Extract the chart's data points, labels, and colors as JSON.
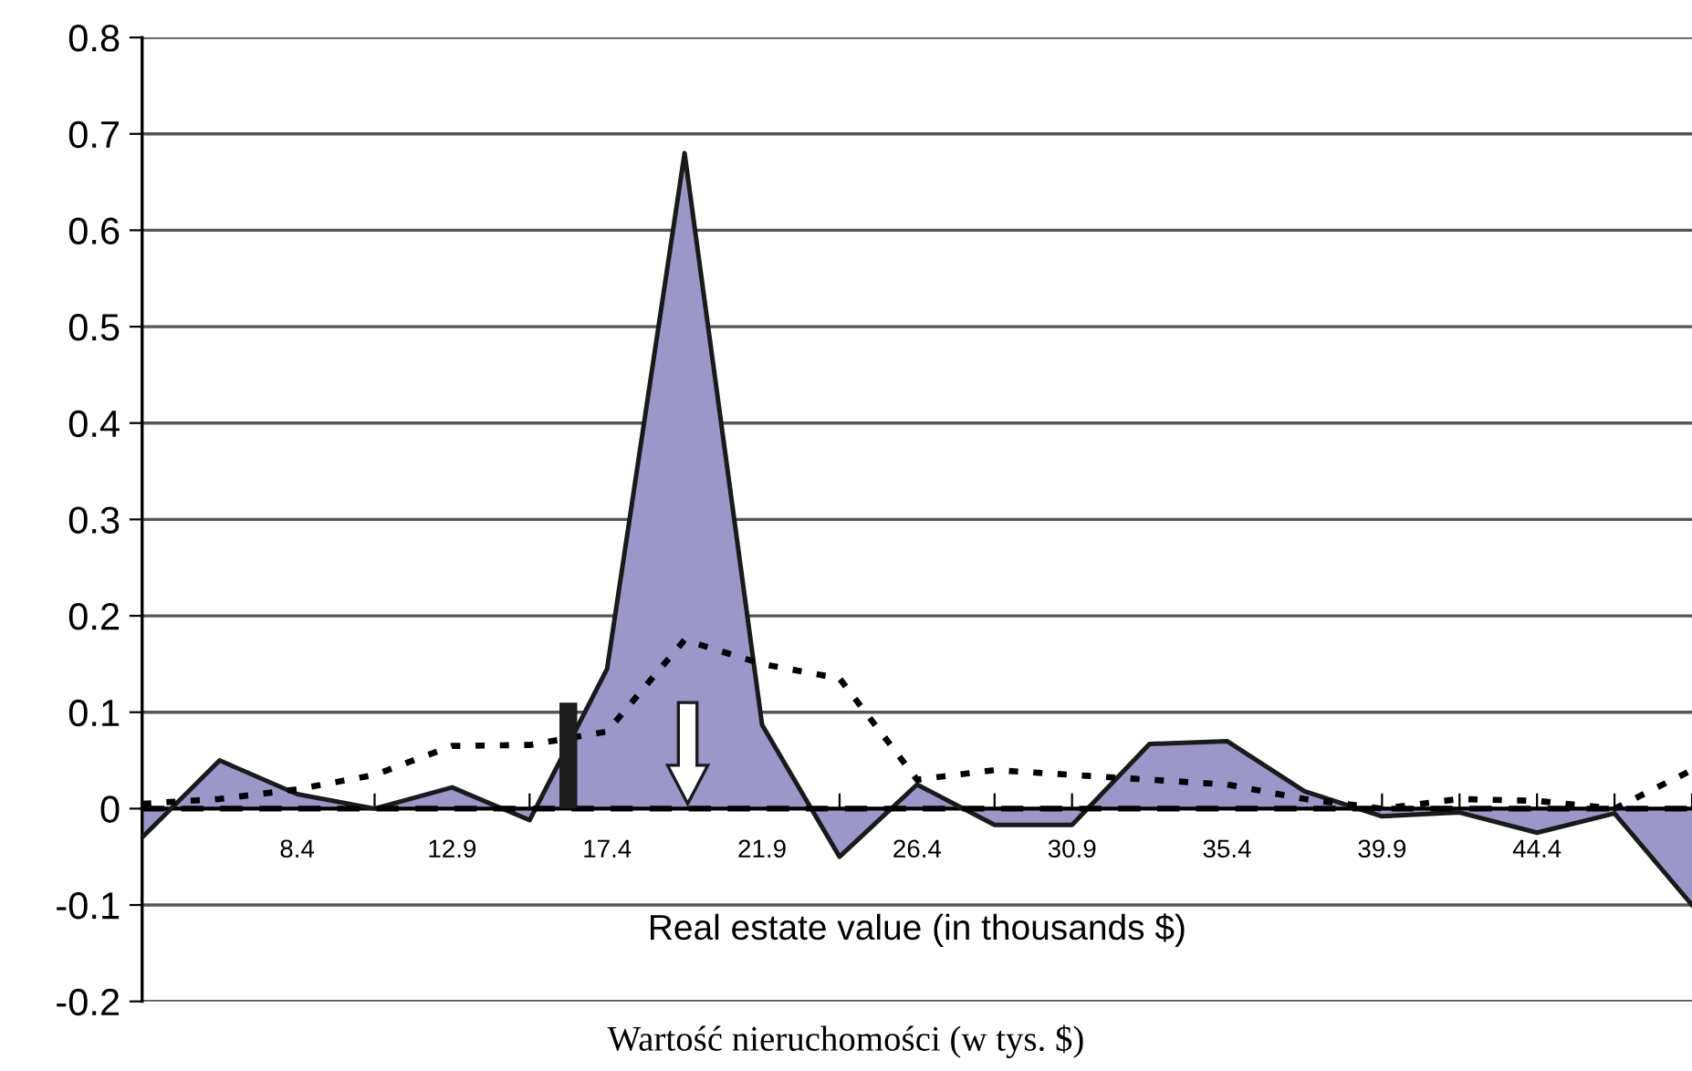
{
  "chart_data": {
    "type": "area",
    "xlabel": "Real estate value (in thousands $)",
    "annotations": [
      "Wartość nieruchomości (w tys. $)"
    ],
    "categories": [
      null,
      null,
      "8.4",
      null,
      "12.9",
      null,
      "17.4",
      null,
      "21.9",
      null,
      "26.4",
      null,
      "30.9",
      null,
      "35.4",
      null,
      "39.9",
      null,
      "44.4",
      null,
      null
    ],
    "series": [
      {
        "color": "#9b98c9",
        "values": [
          -0.03,
          0.05,
          0.015,
          0.0,
          0.022,
          -0.012,
          0.145,
          0.68,
          0.087,
          -0.05,
          0.025,
          -0.017,
          -0.017,
          0.067,
          0.07,
          0.018,
          -0.008,
          -0.004,
          -0.025,
          -0.005,
          -0.1
        ]
      },
      {
        "type": "line",
        "color": "#000000",
        "line_style": "dotted",
        "values": [
          0.005,
          0.01,
          0.02,
          0.035,
          0.065,
          0.066,
          0.08,
          0.175,
          0.15,
          0.135,
          0.03,
          0.04,
          0.035,
          0.03,
          0.025,
          0.01,
          0.0,
          0.01,
          0.008,
          0.0,
          0.04
        ]
      }
    ],
    "ref_lines": [
      {
        "axis": "y",
        "value": 0,
        "color": "#000000",
        "line_style": "dashed"
      }
    ],
    "ylim": [
      -0.2,
      0.8
    ],
    "yticks": [
      -0.2,
      -0.1,
      0,
      0.1,
      0.2,
      0.3,
      0.4,
      0.5,
      0.6,
      0.7,
      0.8
    ],
    "grid": "y",
    "legend": false
  }
}
